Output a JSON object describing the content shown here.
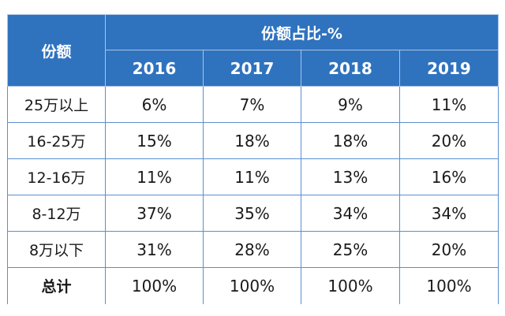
{
  "table": {
    "corner_header": "份额",
    "group_header": "份额占比-%",
    "years": [
      "2016",
      "2017",
      "2018",
      "2019"
    ],
    "rows": [
      {
        "label": "25万以上",
        "values": [
          "6%",
          "7%",
          "9%",
          "11%"
        ]
      },
      {
        "label": "16-25万",
        "values": [
          "15%",
          "18%",
          "18%",
          "20%"
        ]
      },
      {
        "label": "12-16万",
        "values": [
          "11%",
          "11%",
          "13%",
          "16%"
        ]
      },
      {
        "label": "8-12万",
        "values": [
          "37%",
          "35%",
          "34%",
          "34%"
        ]
      },
      {
        "label": "8万以下",
        "values": [
          "31%",
          "28%",
          "25%",
          "20%"
        ]
      },
      {
        "label": "总计",
        "values": [
          "100%",
          "100%",
          "100%",
          "100%"
        ]
      }
    ]
  },
  "colors": {
    "header_bg": "#2f73bf",
    "header_text": "#ffffff",
    "grid_line": "#5a8fd0",
    "cell_text": "#1a1a1a"
  }
}
